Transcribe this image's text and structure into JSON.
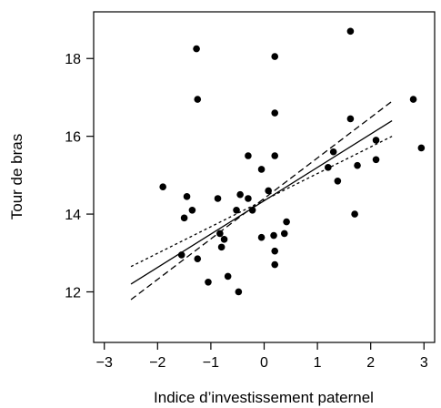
{
  "chart_data": {
    "type": "scatter",
    "title": "",
    "xlabel": "Indice d’investissement paternel",
    "ylabel": "Tour de bras",
    "xlim": [
      -3.2,
      3.2
    ],
    "ylim": [
      10.7,
      19.2
    ],
    "xticks": [
      -3,
      -2,
      -1,
      0,
      1,
      2,
      3
    ],
    "xtick_labels": [
      "−3",
      "−2",
      "−1",
      "0",
      "1",
      "2",
      "3"
    ],
    "yticks": [
      12,
      14,
      16,
      18
    ],
    "ytick_labels": [
      "12",
      "14",
      "16",
      "18"
    ],
    "grid": false,
    "legend": "none",
    "points": [
      {
        "x": -1.9,
        "y": 14.7
      },
      {
        "x": -1.55,
        "y": 12.95
      },
      {
        "x": -1.5,
        "y": 13.9
      },
      {
        "x": -1.45,
        "y": 14.45
      },
      {
        "x": -1.35,
        "y": 14.1
      },
      {
        "x": -1.27,
        "y": 18.25
      },
      {
        "x": -1.25,
        "y": 16.95
      },
      {
        "x": -1.25,
        "y": 12.85
      },
      {
        "x": -1.05,
        "y": 12.25
      },
      {
        "x": -0.87,
        "y": 14.4
      },
      {
        "x": -0.83,
        "y": 13.5
      },
      {
        "x": -0.8,
        "y": 13.15
      },
      {
        "x": -0.75,
        "y": 13.35
      },
      {
        "x": -0.68,
        "y": 12.4
      },
      {
        "x": -0.52,
        "y": 14.1
      },
      {
        "x": -0.48,
        "y": 12.0
      },
      {
        "x": -0.45,
        "y": 14.5
      },
      {
        "x": -0.3,
        "y": 14.4
      },
      {
        "x": -0.3,
        "y": 15.5
      },
      {
        "x": -0.22,
        "y": 14.1
      },
      {
        "x": -0.05,
        "y": 15.15
      },
      {
        "x": -0.05,
        "y": 13.4
      },
      {
        "x": 0.08,
        "y": 14.6
      },
      {
        "x": 0.18,
        "y": 13.45
      },
      {
        "x": 0.2,
        "y": 12.7
      },
      {
        "x": 0.2,
        "y": 13.05
      },
      {
        "x": 0.2,
        "y": 15.5
      },
      {
        "x": 0.2,
        "y": 16.6
      },
      {
        "x": 0.2,
        "y": 18.05
      },
      {
        "x": 0.38,
        "y": 13.5
      },
      {
        "x": 0.42,
        "y": 13.8
      },
      {
        "x": 1.2,
        "y": 15.2
      },
      {
        "x": 1.3,
        "y": 15.6
      },
      {
        "x": 1.38,
        "y": 14.85
      },
      {
        "x": 1.62,
        "y": 16.45
      },
      {
        "x": 1.62,
        "y": 18.7
      },
      {
        "x": 1.7,
        "y": 14.0
      },
      {
        "x": 1.75,
        "y": 15.25
      },
      {
        "x": 2.1,
        "y": 15.9
      },
      {
        "x": 2.1,
        "y": 15.4
      },
      {
        "x": 2.8,
        "y": 16.95
      },
      {
        "x": 2.95,
        "y": 15.7
      }
    ],
    "fit_lines": [
      {
        "style": "solid",
        "x": [
          -2.5,
          2.4
        ],
        "y": [
          12.2,
          16.4
        ]
      },
      {
        "style": "dashed",
        "x": [
          -2.5,
          2.4
        ],
        "y": [
          11.8,
          16.9
        ]
      },
      {
        "style": "dotted",
        "x": [
          -2.5,
          2.4
        ],
        "y": [
          12.65,
          16.0
        ]
      }
    ],
    "colors": {
      "points": "#000000",
      "lines": "#000000"
    }
  }
}
